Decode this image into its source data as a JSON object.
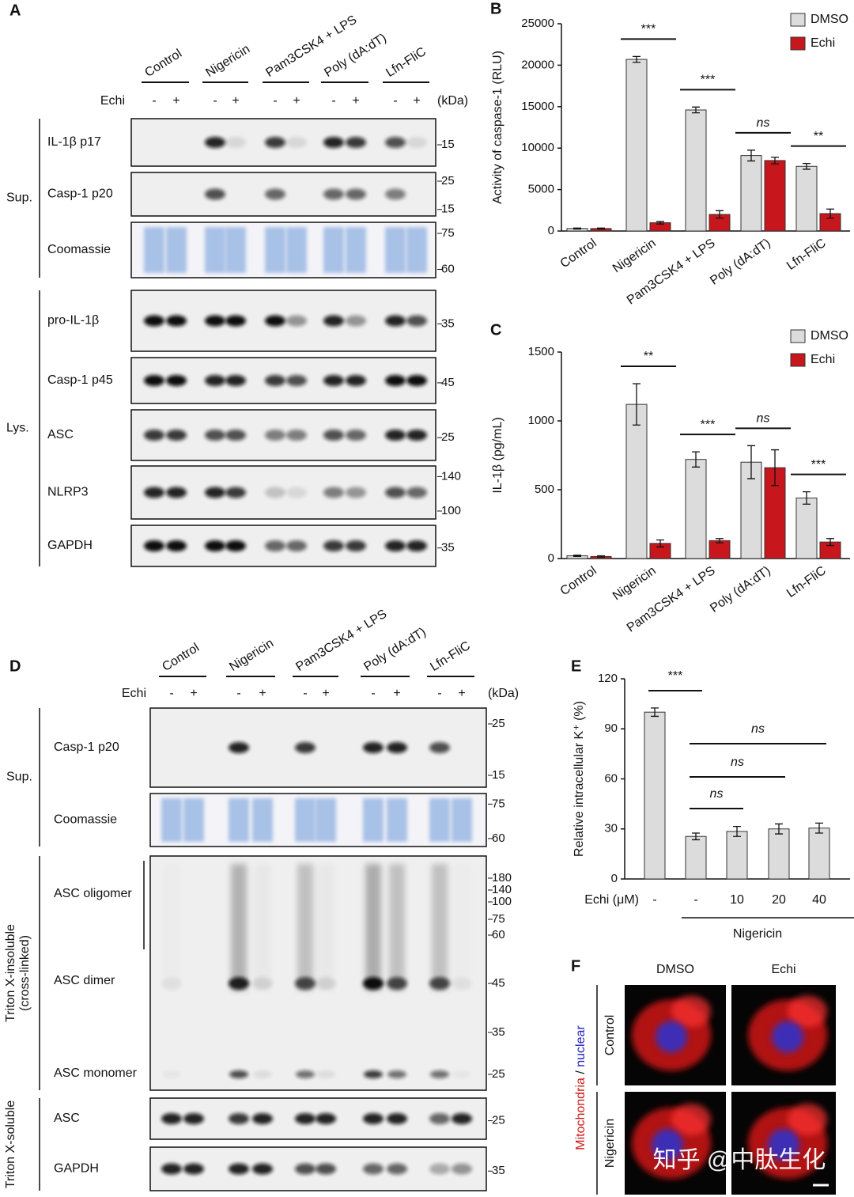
{
  "blots": [
    {
      "panel": "A",
      "groups": [
        "Control",
        "Nigericin",
        "Pam3CSK4 + LPS",
        "Poly (dA:dT)",
        "Lfn-FliC"
      ],
      "treatment": "Echi",
      "signs": [
        "-",
        "+"
      ],
      "unit": "(kDa)",
      "sections": [
        {
          "label": [
            "Sup."
          ],
          "boxes": [
            {
              "labels": [
                "IL-1β p17"
              ],
              "markers": [
                15
              ]
            },
            {
              "labels": [
                "Casp-1 p20"
              ],
              "markers": [
                25,
                15
              ]
            },
            {
              "labels": [
                "Coomassie"
              ],
              "markers": [
                75,
                60
              ]
            }
          ]
        },
        {
          "label": [
            "Lys."
          ],
          "boxes": [
            {
              "labels": [
                "pro-IL-1β"
              ],
              "markers": [
                35
              ]
            },
            {
              "labels": [
                "Casp-1 p45"
              ],
              "markers": [
                45
              ]
            },
            {
              "labels": [
                "ASC"
              ],
              "markers": [
                25
              ]
            },
            {
              "labels": [
                "NLRP3"
              ],
              "markers": [
                140,
                100
              ]
            },
            {
              "labels": [
                "GAPDH"
              ],
              "markers": [
                35
              ]
            }
          ]
        }
      ]
    },
    {
      "panel": "D",
      "groups": [
        "Control",
        "Nigericin",
        "Pam3CSK4 + LPS",
        "Poly (dA:dT)",
        "Lfn-FliC"
      ],
      "treatment": "Echi",
      "signs": [
        "-",
        "+"
      ],
      "unit": "(kDa)",
      "sections": [
        {
          "label": [
            "Sup."
          ],
          "boxes": [
            {
              "labels": [
                "Casp-1 p20"
              ],
              "markers": [
                25,
                15
              ]
            },
            {
              "labels": [
                "Coomassie"
              ],
              "markers": [
                75,
                60
              ]
            }
          ]
        },
        {
          "label": [
            "Triton X-insoluble",
            "(cross-linked)"
          ],
          "boxes": [
            {
              "labels": [
                "ASC oligomer",
                "ASC dimer",
                "ASC monomer"
              ],
              "markers": [
                180,
                140,
                100,
                75,
                60,
                45,
                35,
                25
              ]
            }
          ]
        },
        {
          "label": [
            "Triton X-soluble"
          ],
          "boxes": [
            {
              "labels": [
                "ASC"
              ],
              "markers": [
                25
              ]
            },
            {
              "labels": [
                "GAPDH"
              ],
              "markers": [
                35
              ]
            }
          ]
        }
      ]
    }
  ],
  "chart_data": [
    {
      "type": "bar",
      "panel": "B",
      "ylabel": "Activity of caspase-1 (RLU)",
      "categories": [
        "Control",
        "Nigericin",
        "Pam3CSK4 + LPS",
        "Poly (dA:dT)",
        "Lfn-FliC"
      ],
      "series": [
        {
          "name": "DMSO",
          "color": "#dcdcdc",
          "values": [
            300,
            20700,
            14600,
            9100,
            7800
          ],
          "errors": [
            60,
            350,
            350,
            650,
            350
          ]
        },
        {
          "name": "Echi",
          "color": "#c8161d",
          "values": [
            300,
            1000,
            2000,
            8500,
            2100
          ],
          "errors": [
            60,
            150,
            450,
            400,
            550
          ]
        }
      ],
      "annotations": [
        null,
        "***",
        "***",
        "ns",
        "**"
      ],
      "ylim": [
        0,
        25000
      ],
      "yticks": [
        0,
        5000,
        10000,
        15000,
        20000,
        25000
      ],
      "legend": "upper right"
    },
    {
      "type": "bar",
      "panel": "C",
      "ylabel": "IL-1β (pg/mL)",
      "categories": [
        "Control",
        "Nigericin",
        "Pam3CSK4 + LPS",
        "Poly (dA:dT)",
        "Lfn-FliC"
      ],
      "series": [
        {
          "name": "DMSO",
          "color": "#dcdcdc",
          "values": [
            20,
            1120,
            720,
            700,
            440
          ],
          "errors": [
            5,
            150,
            55,
            120,
            45
          ]
        },
        {
          "name": "Echi",
          "color": "#c8161d",
          "values": [
            15,
            110,
            130,
            660,
            120
          ],
          "errors": [
            5,
            25,
            15,
            130,
            25
          ]
        }
      ],
      "annotations": [
        null,
        "**",
        "***",
        "ns",
        "***"
      ],
      "ylim": [
        0,
        1500
      ],
      "yticks": [
        0,
        500,
        1000,
        1500
      ],
      "legend": "upper right"
    },
    {
      "type": "bar",
      "panel": "E",
      "ylabel": "Relative intracellular K⁺ (%)",
      "xlabel": "Echi (μM)",
      "group_label": "Nigericin",
      "categories": [
        "-",
        "-",
        "10",
        "20",
        "40"
      ],
      "values": [
        100,
        25.5,
        28.5,
        30,
        30.5
      ],
      "errors": [
        2.5,
        2,
        3,
        3,
        3
      ],
      "color": "#dcdcdc",
      "annotations": [
        "***",
        "ns",
        "ns",
        "ns"
      ],
      "ylim": [
        0,
        120
      ],
      "yticks": [
        0,
        30,
        60,
        90,
        120
      ]
    }
  ],
  "panel_f": {
    "panel": "F",
    "columns": [
      "DMSO",
      "Echi"
    ],
    "rows": [
      "Control",
      "Nigericin"
    ],
    "stain": [
      "Mitochondria",
      "/",
      "nuclear"
    ]
  },
  "watermark": "知乎 @中肽生化"
}
